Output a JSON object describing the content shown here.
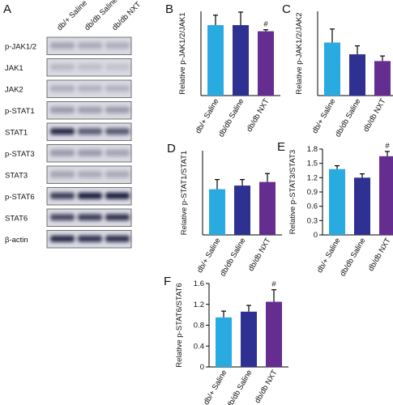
{
  "blot": {
    "label": "A",
    "lanes": [
      "db/+ Saline",
      "db/db Saline",
      "db/db NXT"
    ],
    "rows": [
      "p-JAK1/2",
      "JAK1",
      "JAK2",
      "p-STAT1",
      "STAT1",
      "p-STAT3",
      "STAT3",
      "p-STAT6",
      "STAT6",
      "β-actin"
    ]
  },
  "chart_data": [
    {
      "type": "bar",
      "label": "B",
      "y_label": "Relative p-JAK1/2/JAK1",
      "categories": [
        "db/+ Saline",
        "db/db Saline",
        "db/db NXT"
      ],
      "values": [
        0.92,
        0.92,
        0.84
      ],
      "errors": [
        0.13,
        0.17,
        0.02
      ],
      "colors": [
        "#29abe2",
        "#2e3192",
        "#662d91"
      ],
      "significance": [
        null,
        null,
        "#"
      ],
      "ylim": [
        0,
        1.1
      ]
    },
    {
      "type": "bar",
      "label": "C",
      "y_label": "Relative p-JAK1/2/JAK2",
      "categories": [
        "db/+ Saline",
        "db/db Saline",
        "db/db NXT"
      ],
      "values": [
        0.63,
        0.49,
        0.41
      ],
      "errors": [
        0.16,
        0.1,
        0.06
      ],
      "colors": [
        "#29abe2",
        "#2e3192",
        "#662d91"
      ],
      "ylim": [
        0,
        1.0
      ]
    },
    {
      "type": "bar",
      "label": "D",
      "y_label": "Relative p-STAT1/STAT1",
      "categories": [
        "db/+ Saline",
        "db/db Saline",
        "db/db NXT"
      ],
      "values": [
        0.38,
        0.41,
        0.44
      ],
      "errors": [
        0.08,
        0.05,
        0.07
      ],
      "colors": [
        "#29abe2",
        "#2e3192",
        "#662d91"
      ],
      "ylim": [
        0,
        0.7
      ]
    },
    {
      "type": "bar",
      "label": "E",
      "y_label": "Relative p-STAT3/STAT3",
      "categories": [
        "db/+ Saline",
        "db/db Saline",
        "db/db NXT"
      ],
      "values": [
        1.38,
        1.2,
        1.65
      ],
      "errors": [
        0.07,
        0.08,
        0.1
      ],
      "colors": [
        "#29abe2",
        "#2e3192",
        "#662d91"
      ],
      "significance": [
        null,
        null,
        "#"
      ],
      "ylim": [
        0,
        1.8
      ],
      "yticks": [
        0,
        0.3,
        0.6,
        0.9,
        1.2,
        1.5,
        1.8
      ]
    },
    {
      "type": "bar",
      "label": "F",
      "y_label": "Relative p-STAT6/STAT6",
      "categories": [
        "db/+ Saline",
        "db/db Saline",
        "db/db NXT"
      ],
      "values": [
        0.95,
        1.06,
        1.25
      ],
      "errors": [
        0.12,
        0.12,
        0.23
      ],
      "colors": [
        "#29abe2",
        "#2e3192",
        "#662d91"
      ],
      "significance": [
        null,
        null,
        "#"
      ],
      "ylim": [
        0,
        1.6
      ],
      "yticks": [
        0,
        0.4,
        0.8,
        1.2,
        1.6
      ]
    }
  ]
}
